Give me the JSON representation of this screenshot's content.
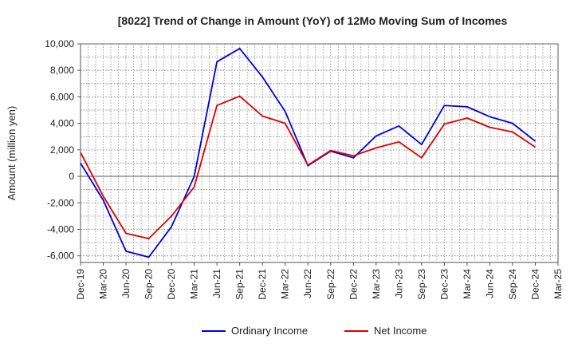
{
  "chart_data": {
    "type": "line",
    "title": "[8022]  Trend of Change in Amount (YoY) of 12Mo Moving Sum of Incomes",
    "xlabel": "",
    "ylabel": "Amount (million yen)",
    "ylim": [
      -6500,
      10000
    ],
    "yticks": [
      -6000,
      -4000,
      -2000,
      0,
      2000,
      4000,
      6000,
      8000,
      10000
    ],
    "ytick_labels": [
      "-6,000",
      "-4,000",
      "-2,000",
      "0",
      "2,000",
      "4,000",
      "6,000",
      "8,000",
      "10,000"
    ],
    "x_tick_labels": [
      "Dec-19",
      "Mar-20",
      "Jun-20",
      "Sep-20",
      "Dec-20",
      "Mar-21",
      "Jun-21",
      "Sep-21",
      "Dec-21",
      "Mar-22",
      "Jun-22",
      "Sep-22",
      "Dec-22",
      "Mar-23",
      "Jun-23",
      "Sep-23",
      "Dec-23",
      "Mar-24",
      "Jun-24",
      "Sep-24",
      "Dec-24",
      "Mar-25"
    ],
    "categories": [
      "Dec-19",
      "Mar-20",
      "Jun-20",
      "Sep-20",
      "Dec-20",
      "Mar-21",
      "Jun-21",
      "Sep-21",
      "Dec-21",
      "Mar-22",
      "Jun-22",
      "Sep-22",
      "Dec-22",
      "Mar-23",
      "Jun-23",
      "Sep-23",
      "Dec-23",
      "Mar-24",
      "Jun-24",
      "Sep-24",
      "Dec-24"
    ],
    "grid": true,
    "legend_position": "bottom-center",
    "series": [
      {
        "name": "Ordinary Income",
        "color": "#0000dd",
        "values": [
          1000,
          -1800,
          -5650,
          -6100,
          -3800,
          0,
          8650,
          9650,
          7500,
          4900,
          800,
          1900,
          1400,
          3050,
          3800,
          2400,
          5350,
          5250,
          4500,
          4000,
          2650
        ]
      },
      {
        "name": "Net Income",
        "color": "#dd0000",
        "values": [
          1800,
          -1500,
          -4300,
          -4700,
          -3000,
          -800,
          5350,
          6050,
          4550,
          4000,
          850,
          1950,
          1550,
          2150,
          2600,
          1400,
          3950,
          4400,
          3700,
          3350,
          2200
        ]
      }
    ]
  }
}
